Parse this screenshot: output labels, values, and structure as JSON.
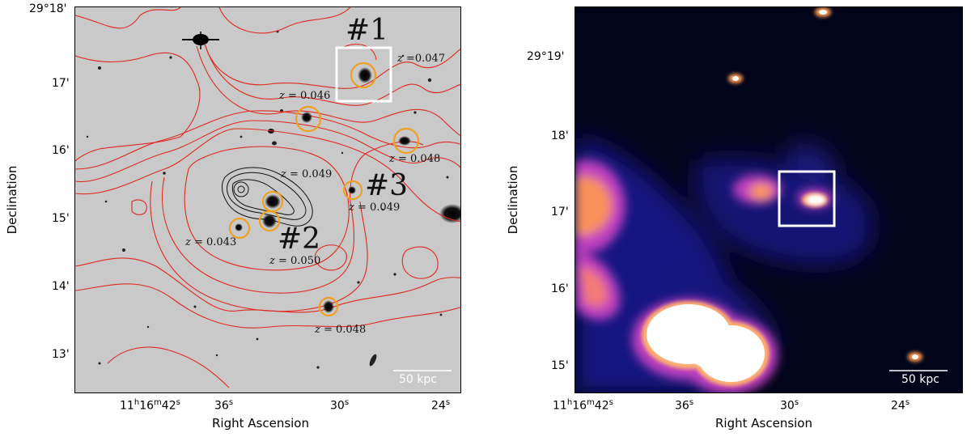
{
  "left_panel": {
    "xlabel": "Right Ascension",
    "ylabel": "Declination",
    "x_ticks": [
      {
        "id": "x0",
        "label": "11h16m42s"
      },
      {
        "id": "x1",
        "label": "36s"
      },
      {
        "id": "x2",
        "label": "30s"
      },
      {
        "id": "x3",
        "label": "24s"
      }
    ],
    "y_ticks": [
      {
        "id": "y0",
        "label": "29°18'"
      },
      {
        "id": "y1",
        "label": "17'"
      },
      {
        "id": "y2",
        "label": "16'"
      },
      {
        "id": "y3",
        "label": "15'"
      },
      {
        "id": "y4",
        "label": "14'"
      },
      {
        "id": "y5",
        "label": "13'"
      }
    ],
    "scale_bar": "50 kpc",
    "markers": {
      "m1": "#1",
      "m2": "#2",
      "m3": "#3"
    },
    "redshifts": {
      "z1": "z =0.047",
      "z2": "z = 0.046",
      "z3": "z = 0.048",
      "z4": "z = 0.049",
      "z5": "z = 0.049",
      "z6": "z = 0.043",
      "z7": "z = 0.050",
      "z8": "z = 0.048"
    },
    "colors": {
      "contour_red": "#e0281e",
      "circle": "#f0a020",
      "box": "#ffffff",
      "background": "#c9c9c9"
    }
  },
  "right_panel": {
    "xlabel": "Right Ascension",
    "ylabel": "Declination",
    "x_ticks": [
      {
        "id": "x0",
        "label": "11h16m42s"
      },
      {
        "id": "x1",
        "label": "36s"
      },
      {
        "id": "x2",
        "label": "30s"
      },
      {
        "id": "x3",
        "label": "24s"
      }
    ],
    "y_ticks": [
      {
        "id": "y0",
        "label": "29°19'"
      },
      {
        "id": "y1",
        "label": "18'"
      },
      {
        "id": "y2",
        "label": "17'"
      },
      {
        "id": "y3",
        "label": "16'"
      },
      {
        "id": "y4",
        "label": "15'"
      }
    ],
    "scale_bar": "50 kpc",
    "colors": {
      "background": "#02041a",
      "low": "#1a1a8c",
      "mid": "#c040c0",
      "high": "#ff9a50",
      "peak": "#ffffff"
    }
  }
}
